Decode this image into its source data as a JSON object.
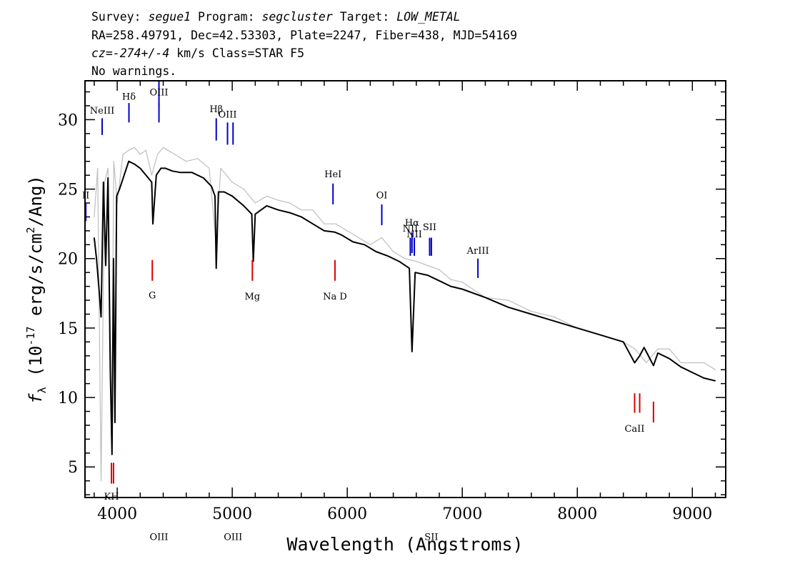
{
  "header": {
    "line1": [
      {
        "text": "Survey: ",
        "italic": false
      },
      {
        "text": "segue1",
        "italic": true
      },
      {
        "text": " Program: ",
        "italic": false
      },
      {
        "text": "segcluster",
        "italic": true
      },
      {
        "text": " Target: ",
        "italic": false
      },
      {
        "text": "LOW_METAL",
        "italic": true
      }
    ],
    "line2": "RA=258.49791, Dec=42.53303, Plate=2247, Fiber=438, MJD=54169",
    "line3": [
      {
        "text": "cz=-274+/-4",
        "italic": true
      },
      {
        "text": " km/s Class=STAR F5",
        "italic": false
      }
    ],
    "line4": "No warnings."
  },
  "chart_data": {
    "type": "line",
    "xlabel": "Wavelength (Angstroms)",
    "ylabel_main": "f",
    "ylabel_sub": "λ",
    "ylabel_paren_open": " (10",
    "ylabel_exp": "-17",
    "ylabel_rest": " erg/s/cm",
    "ylabel_exp2": "2",
    "ylabel_tail": "/Ang)",
    "xlim": [
      3720,
      9290
    ],
    "ylim": [
      2.8,
      32.8
    ],
    "x_ticks": [
      4000,
      5000,
      6000,
      7000,
      8000,
      9000
    ],
    "x_tick_labels": [
      "4000",
      "5000",
      "6000",
      "7000",
      "8000",
      "9000"
    ],
    "y_ticks": [
      5,
      10,
      15,
      20,
      25,
      30
    ],
    "y_tick_labels": [
      "5",
      "10",
      "15",
      "20",
      "25",
      "30"
    ],
    "x_minor_step": 200,
    "y_minor_step": 1,
    "series": [
      {
        "role": "noise",
        "color": "#bebebe",
        "x": [
          3800,
          3830,
          3860,
          3890,
          3920,
          3950,
          3970,
          4000,
          4050,
          4100,
          4150,
          4200,
          4250,
          4300,
          4350,
          4400,
          4500,
          4600,
          4700,
          4800,
          4860,
          4900,
          5000,
          5100,
          5200,
          5300,
          5400,
          5500,
          5600,
          5700,
          5800,
          5900,
          6000,
          6100,
          6200,
          6300,
          6400,
          6500,
          6600,
          6700,
          6800,
          6900,
          7000,
          7200,
          7400,
          7600,
          7800,
          8000,
          8200,
          8400,
          8500,
          8600,
          8700,
          8800,
          8900,
          9000,
          9100,
          9200
        ],
        "y": [
          23.0,
          26.5,
          4.0,
          25.5,
          26.5,
          7.0,
          27.0,
          24.0,
          27.5,
          27.8,
          28.0,
          27.5,
          27.8,
          26.0,
          27.5,
          28.0,
          27.5,
          27.0,
          27.2,
          26.5,
          21.0,
          26.5,
          25.5,
          25.0,
          24.0,
          24.5,
          24.2,
          24.0,
          23.5,
          23.5,
          22.5,
          22.5,
          22.0,
          21.5,
          21.0,
          21.5,
          20.5,
          20.0,
          19.8,
          19.5,
          19.2,
          18.5,
          18.3,
          17.2,
          17.0,
          16.2,
          15.8,
          15.0,
          14.5,
          14.0,
          13.5,
          12.5,
          13.5,
          13.5,
          12.5,
          12.5,
          12.5,
          12.0
        ]
      },
      {
        "role": "flux",
        "color": "#000000",
        "x": [
          3800,
          3820,
          3840,
          3860,
          3880,
          3900,
          3920,
          3940,
          3955,
          3968,
          3980,
          3995,
          4020,
          4060,
          4100,
          4150,
          4200,
          4250,
          4300,
          4310,
          4340,
          4380,
          4420,
          4480,
          4550,
          4650,
          4750,
          4820,
          4850,
          4861,
          4880,
          4930,
          5000,
          5100,
          5170,
          5183,
          5200,
          5300,
          5400,
          5500,
          5600,
          5700,
          5800,
          5893,
          5950,
          6050,
          6150,
          6250,
          6350,
          6450,
          6540,
          6563,
          6590,
          6700,
          6800,
          6900,
          7000,
          7200,
          7400,
          7600,
          7800,
          8000,
          8200,
          8400,
          8498,
          8542,
          8580,
          8662,
          8700,
          8800,
          8900,
          9000,
          9100,
          9200
        ],
        "y": [
          21.5,
          20.0,
          18.0,
          15.8,
          25.5,
          19.5,
          25.8,
          12.0,
          5.9,
          20.0,
          8.2,
          24.5,
          25.0,
          26.0,
          27.0,
          26.8,
          26.5,
          26.0,
          25.5,
          22.5,
          26.0,
          26.5,
          26.5,
          26.3,
          26.2,
          26.2,
          25.8,
          25.2,
          24.5,
          19.3,
          24.8,
          24.8,
          24.5,
          23.8,
          23.2,
          19.8,
          23.2,
          23.8,
          23.5,
          23.3,
          23.0,
          22.5,
          22.0,
          21.9,
          21.7,
          21.2,
          21.0,
          20.5,
          20.2,
          19.8,
          19.3,
          13.3,
          19.0,
          18.8,
          18.4,
          18.0,
          17.8,
          17.2,
          16.5,
          16.0,
          15.5,
          15.0,
          14.5,
          14.0,
          12.5,
          13.0,
          13.6,
          12.3,
          13.2,
          12.8,
          12.2,
          11.8,
          11.4,
          11.2
        ]
      }
    ],
    "emission_lines": [
      {
        "label": "NeIII",
        "x": 3869,
        "y0": 28.9,
        "y1": 30.1,
        "label_y": 30.7
      },
      {
        "label": "Hδ",
        "x": 4102,
        "y0": 29.8,
        "y1": 31.2,
        "label_y": 31.7
      },
      {
        "label": "OIII",
        "x": 4363,
        "y0": 30.9,
        "y1": 32.8,
        "label_y": 32.0
      },
      {
        "label": "OIII",
        "x": 4363,
        "y0": 29.8,
        "y1": 31.2,
        "label_y": 0
      },
      {
        "label": "Hβ",
        "x": 4861,
        "y0": 28.5,
        "y1": 30.1,
        "label_y": 30.8
      },
      {
        "label": "OIII",
        "x": 4959,
        "y0": 28.2,
        "y1": 29.8,
        "label_y": 30.4
      },
      {
        "label": "OIII",
        "x": 5007,
        "y0": 28.2,
        "y1": 29.8,
        "label_y": 0
      },
      {
        "label": "HeI",
        "x": 5876,
        "y0": 23.9,
        "y1": 25.4,
        "label_y": 26.1
      },
      {
        "label": "OI",
        "x": 6300,
        "y0": 22.4,
        "y1": 23.9,
        "label_y": 24.6
      },
      {
        "label": "NII",
        "x": 6548,
        "y0": 20.2,
        "y1": 21.5,
        "label_y": 22.2
      },
      {
        "label": "Hα",
        "x": 6563,
        "y0": 20.4,
        "y1": 21.9,
        "label_y": 22.6
      },
      {
        "label": "NII",
        "x": 6583,
        "y0": 20.2,
        "y1": 21.5,
        "label_y": 21.8
      },
      {
        "label": "SII",
        "x": 6716,
        "y0": 20.2,
        "y1": 21.5,
        "label_y": 22.3
      },
      {
        "label": "SII",
        "x": 6731,
        "y0": 20.2,
        "y1": 21.5,
        "label_y": 0
      },
      {
        "label": "ArIII",
        "x": 7136,
        "y0": 18.6,
        "y1": 20.0,
        "label_y": 20.6
      },
      {
        "label": "II",
        "x": 3727,
        "y0": 22.7,
        "y1": 24.0,
        "label_y": 24.6
      }
    ],
    "absorption_lines": [
      {
        "label": "KH",
        "x": 3950,
        "y0": 3.8,
        "y1": 5.3,
        "label_y": 2.9
      },
      {
        "label": "",
        "x": 3968,
        "y0": 3.8,
        "y1": 5.3,
        "label_y": 0
      },
      {
        "label": "G",
        "x": 4305,
        "y0": 18.4,
        "y1": 19.9,
        "label_y": 17.4
      },
      {
        "label": "Mg",
        "x": 5175,
        "y0": 18.4,
        "y1": 19.9,
        "label_y": 17.3
      },
      {
        "label": "Na D",
        "x": 5893,
        "y0": 18.4,
        "y1": 19.9,
        "label_y": 17.3
      },
      {
        "label": "CaII",
        "x": 8498,
        "y0": 8.9,
        "y1": 10.3,
        "label_y": 7.8
      },
      {
        "label": "",
        "x": 8542,
        "y0": 8.9,
        "y1": 10.3,
        "label_y": 0
      },
      {
        "label": "",
        "x": 8662,
        "y0": 8.2,
        "y1": 9.7,
        "label_y": 0
      }
    ],
    "line_colors": {
      "emission": "#0000cc",
      "absorption": "#dd0000"
    }
  }
}
